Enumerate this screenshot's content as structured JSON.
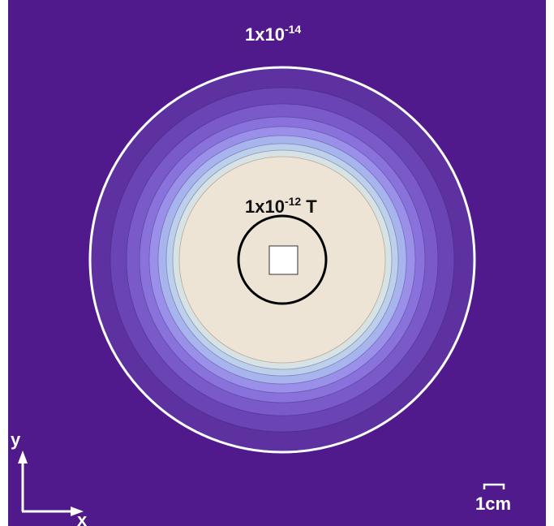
{
  "contour_labels": {
    "outer": {
      "base": "1x10",
      "exponent": "-14",
      "unit": ""
    },
    "inner": {
      "base": "1x10",
      "exponent": "-12",
      "unit": "T"
    }
  },
  "axes": {
    "y_label": "y",
    "x_label": "x"
  },
  "scale_bar": {
    "label": "1cm"
  },
  "colors": {
    "background": "#511a8c",
    "outer_contour": "#ffffff",
    "inner_contour": "#000000",
    "core": "#ede4d5",
    "source_square": "#ffffff",
    "label_light": "#ffffff",
    "label_dark": "#111111",
    "bands": [
      "#5d32a0",
      "#6a44b4",
      "#7a5ac8",
      "#8a72dc",
      "#9a90ea",
      "#a8b4ee",
      "#bcd0ec",
      "#d6e2e4"
    ]
  }
}
